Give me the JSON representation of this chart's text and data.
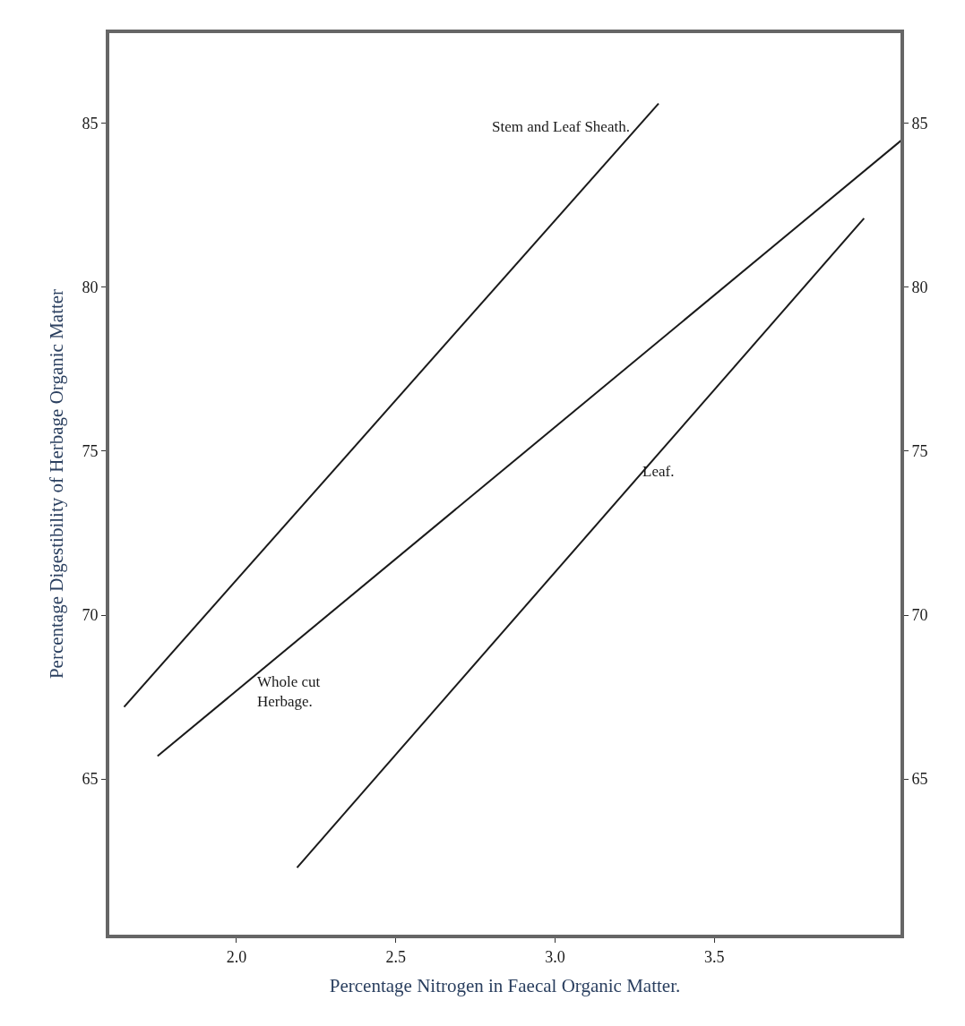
{
  "chart_data": {
    "type": "line",
    "xlabel": "Percentage Nitrogen in Faecal Organic Matter.",
    "ylabel": "Percentage Digestibility of Herbage Organic Matter",
    "xlim": [
      1.595,
      4.09
    ],
    "xticks": [
      {
        "value": 2.0,
        "label": "2.0"
      },
      2.5,
      {
        "value": 3.0,
        "label": "3.0"
      },
      3.5
    ],
    "ylim": [
      60.2,
      87.8
    ],
    "yticks": [
      65,
      70,
      75,
      80,
      85
    ],
    "y2lim": [
      60.2,
      87.8
    ],
    "y2ticks": [
      65,
      70,
      75,
      80,
      85
    ],
    "legend": false,
    "marker": "none",
    "line_style": "solid",
    "series": [
      {
        "name": "Stem and Leaf Sheath.",
        "color": "#1a1a1a",
        "x": [
          1.647,
          3.325
        ],
        "values": [
          67.2,
          85.6
        ]
      },
      {
        "name": "Whole cut Herbage.",
        "color": "#1a1a1a",
        "x": [
          1.752,
          4.09
        ],
        "values": [
          65.7,
          84.5
        ]
      },
      {
        "name": "Leaf.",
        "color": "#1a1a1a",
        "x": [
          2.19,
          3.97
        ],
        "values": [
          62.3,
          82.1
        ]
      }
    ]
  }
}
